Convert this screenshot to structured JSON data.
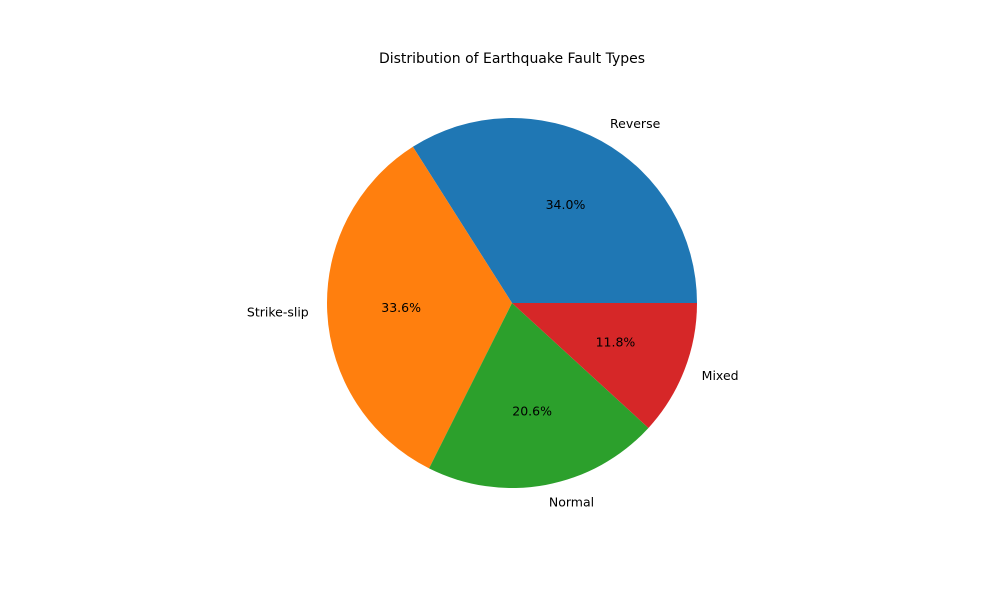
{
  "chart_data": {
    "type": "pie",
    "title": "Distribution of Earthquake Fault Types",
    "categories": [
      "Reverse",
      "Strike-slip",
      "Normal",
      "Mixed"
    ],
    "values": [
      34.0,
      33.6,
      20.6,
      11.8
    ],
    "value_labels": [
      "34.0%",
      "33.6%",
      "20.6%",
      "11.8%"
    ],
    "colors": [
      "#1f77b4",
      "#ff7f0e",
      "#2ca02c",
      "#d62728"
    ],
    "start_angle_deg": 0,
    "direction": "counterclockwise",
    "legend": "none"
  }
}
